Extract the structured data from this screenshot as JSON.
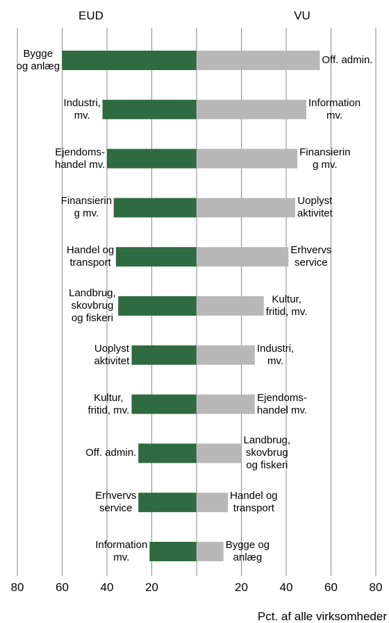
{
  "chart_data": [
    {
      "type": "bar",
      "orientation": "horizontal",
      "direction": "left",
      "title": "EUD",
      "color": "#2e6b40",
      "categories": [
        "Bygge\nog anlæg",
        "Industri,\nmv.",
        "Ejendoms-\nhandel mv.",
        "Finansierin\ng mv.",
        "Handel og\ntransport",
        "Landbrug,\nskovbrug\nog fiskeri",
        "Uoplyst\naktivitet",
        "Kultur,\nfritid, mv.",
        "Off. admin.",
        "Erhvervs\nservice",
        "Information\nmv."
      ],
      "values": [
        60,
        42,
        40,
        37,
        36,
        35,
        29,
        29,
        26,
        26,
        21
      ],
      "xlim": [
        0,
        80
      ],
      "xticks": [
        80,
        60,
        40,
        20
      ],
      "grid": true
    },
    {
      "type": "bar",
      "orientation": "horizontal",
      "direction": "right",
      "title": "VU",
      "color": "#b8b8b8",
      "categories": [
        "Off. admin.",
        "Information\nmv.",
        "Finansierin\ng mv.",
        "Uoplyst\naktivitet",
        "Erhvervs\nservice",
        "Kultur,\nfritid, mv.",
        "Industri,\nmv.",
        "Ejendoms-\nhandel mv.",
        "Landbrug,\nskovbrug\nog fiskeri",
        "Handel og\ntransport",
        "Bygge og\nanlæg"
      ],
      "values": [
        55,
        49,
        45,
        44,
        41,
        30,
        26,
        26,
        20,
        14,
        12
      ],
      "xlim": [
        0,
        80
      ],
      "xticks": [
        20,
        40,
        60,
        80
      ],
      "grid": true,
      "xlabel": "Pct. af alle virksomheder"
    }
  ]
}
